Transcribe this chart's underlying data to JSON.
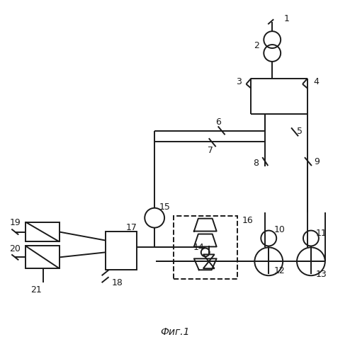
{
  "title": "Фиг.1",
  "bg_color": "#ffffff",
  "line_color": "#1a1a1a",
  "lw": 1.4,
  "fig_width": 4.94,
  "fig_height": 5.0,
  "dpi": 100
}
